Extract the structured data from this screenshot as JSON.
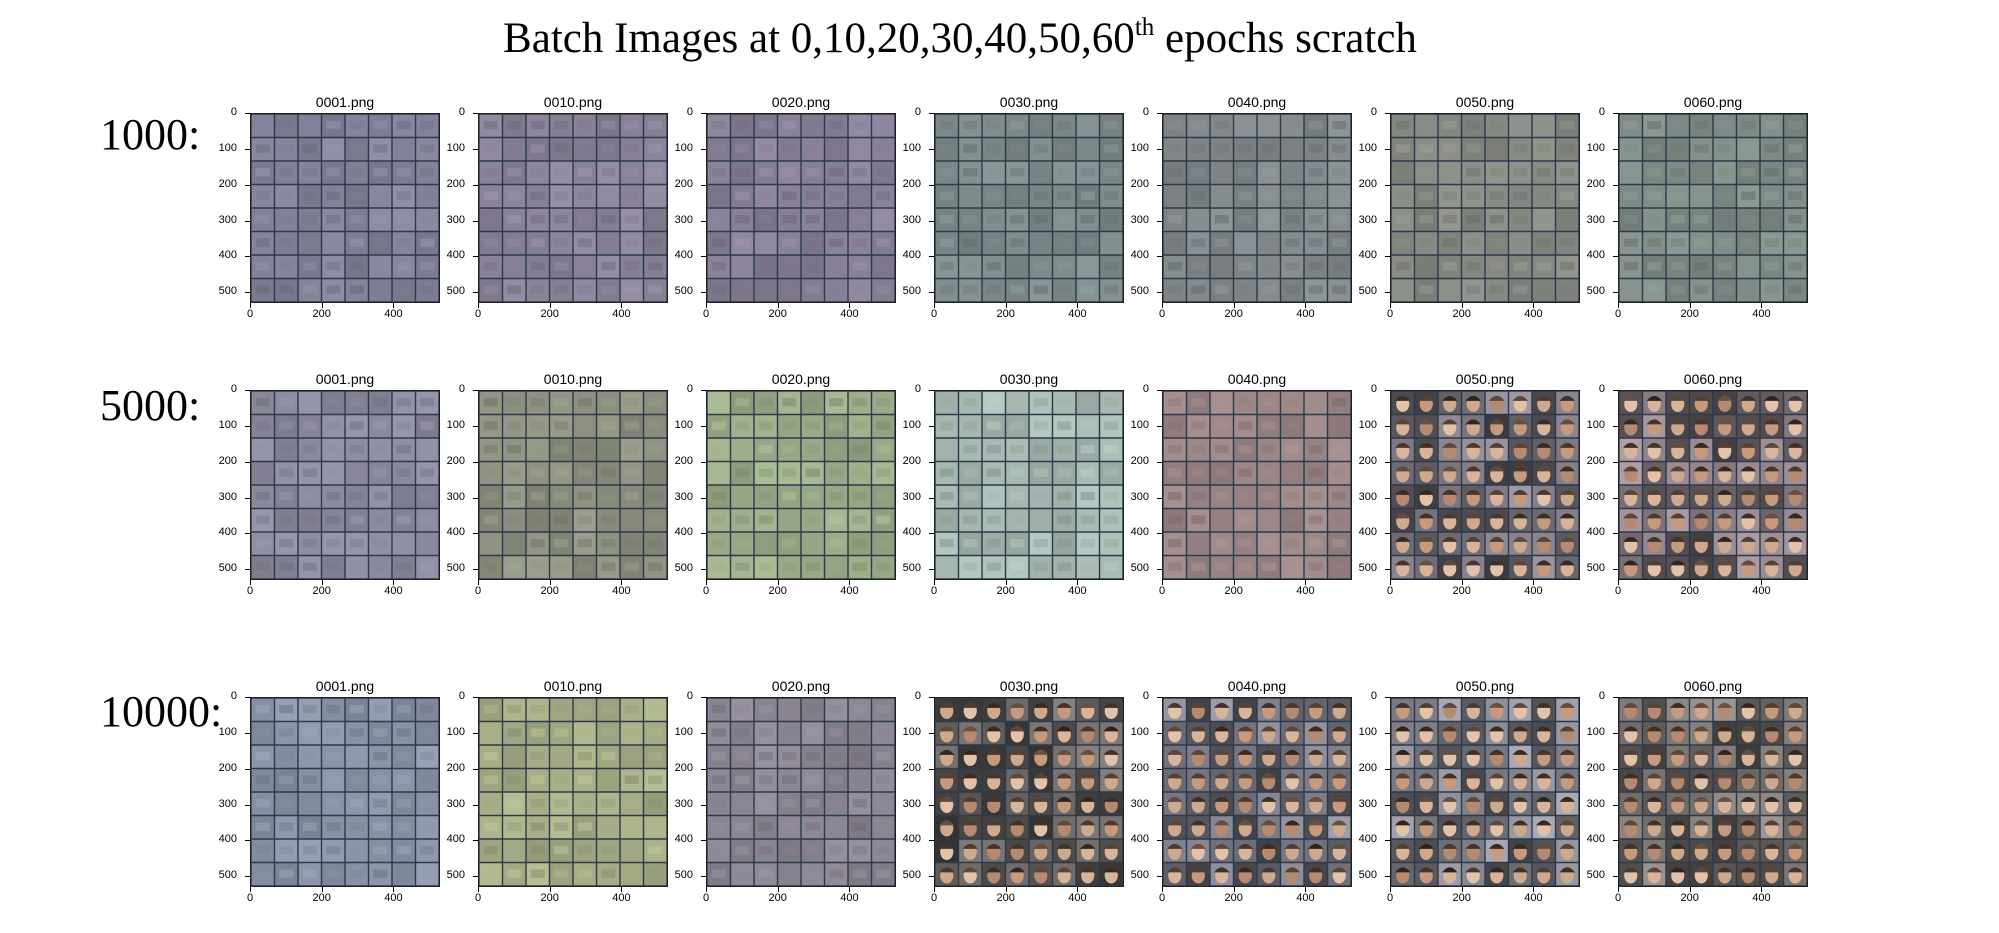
{
  "title": {
    "main": "Batch Images at 0,10,20,30,40,50,60",
    "sup": "th",
    "tail": " epochs scratch"
  },
  "rows": [
    {
      "label": "1000:",
      "panels": [
        {
          "title": "0001.png",
          "style": "noise",
          "color": "#83839a"
        },
        {
          "title": "0010.png",
          "style": "noise",
          "color": "#8a8398"
        },
        {
          "title": "0020.png",
          "style": "noise",
          "color": "#888096"
        },
        {
          "title": "0030.png",
          "style": "noise",
          "color": "#7e8a8a"
        },
        {
          "title": "0040.png",
          "style": "noise",
          "color": "#82888a"
        },
        {
          "title": "0050.png",
          "style": "noise",
          "color": "#868a82"
        },
        {
          "title": "0060.png",
          "style": "noise",
          "color": "#7f8b86"
        }
      ]
    },
    {
      "label": "5000:",
      "panels": [
        {
          "title": "0001.png",
          "style": "noise",
          "color": "#8a8a9c"
        },
        {
          "title": "0010.png",
          "style": "noise",
          "color": "#8d9080"
        },
        {
          "title": "0020.png",
          "style": "noise",
          "color": "#9bab88"
        },
        {
          "title": "0030.png",
          "style": "noise",
          "color": "#a5b7b0"
        },
        {
          "title": "0040.png",
          "style": "noise",
          "color": "#9a8585"
        },
        {
          "title": "0050.png",
          "style": "faces",
          "color": "#6e6a72"
        },
        {
          "title": "0060.png",
          "style": "faces",
          "color": "#7a6e74"
        }
      ]
    },
    {
      "label": "10000:",
      "panels": [
        {
          "title": "0001.png",
          "style": "noise",
          "color": "#8892a4"
        },
        {
          "title": "0010.png",
          "style": "noise",
          "color": "#a6ad86"
        },
        {
          "title": "0020.png",
          "style": "noise",
          "color": "#8a8592"
        },
        {
          "title": "0030.png",
          "style": "faces",
          "color": "#5e5a58"
        },
        {
          "title": "0040.png",
          "style": "faces",
          "color": "#6f6e78"
        },
        {
          "title": "0050.png",
          "style": "faces",
          "color": "#76767e"
        },
        {
          "title": "0060.png",
          "style": "faces",
          "color": "#6e6864"
        }
      ]
    }
  ],
  "axes": {
    "yticks": [
      "0",
      "100",
      "200",
      "300",
      "400",
      "500"
    ],
    "xticks": [
      "0",
      "200",
      "400"
    ]
  }
}
